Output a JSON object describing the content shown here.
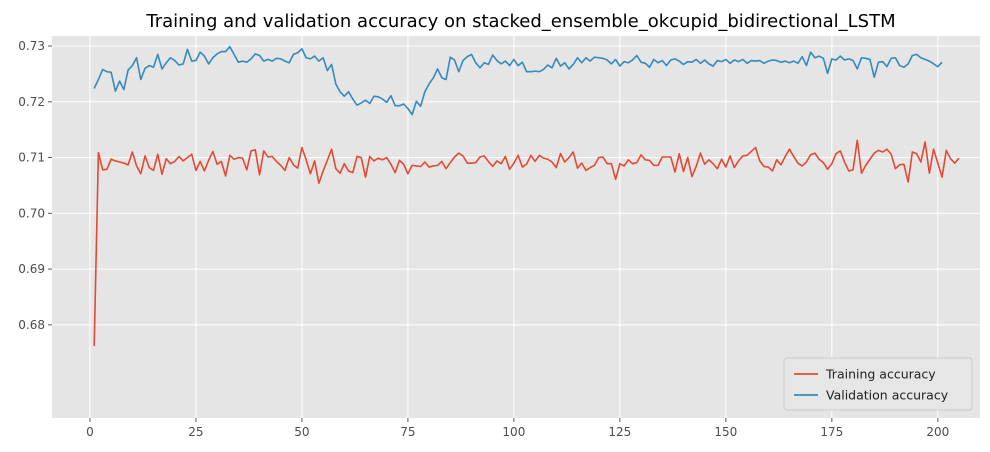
{
  "chart_data": {
    "type": "line",
    "title": "Training and validation accuracy on stacked_ensemble_okcupid_bidirectional_LSTM",
    "xlabel": "",
    "ylabel": "",
    "xlim": [
      -8.95,
      209.95
    ],
    "ylim": [
      0.6633,
      0.7318
    ],
    "xticks": [
      0,
      25,
      50,
      75,
      100,
      125,
      150,
      175,
      200
    ],
    "yticks": [
      0.68,
      0.69,
      0.7,
      0.71,
      0.72,
      0.73
    ],
    "grid": true,
    "legend_position": "lower-right",
    "series": [
      {
        "name": "Training accuracy",
        "color": "#e24a33",
        "values": [
          0.6762,
          0.7109,
          0.7078,
          0.7079,
          0.7097,
          0.7094,
          0.7092,
          0.709,
          0.7087,
          0.711,
          0.7085,
          0.7071,
          0.7103,
          0.7082,
          0.7077,
          0.7106,
          0.707,
          0.7098,
          0.7089,
          0.7093,
          0.7102,
          0.7094,
          0.71,
          0.7106,
          0.7077,
          0.7093,
          0.7076,
          0.7095,
          0.7111,
          0.7088,
          0.7093,
          0.7067,
          0.7104,
          0.7097,
          0.71,
          0.7099,
          0.7078,
          0.7112,
          0.7114,
          0.7069,
          0.7112,
          0.7101,
          0.7102,
          0.7093,
          0.7086,
          0.7077,
          0.71,
          0.7087,
          0.7081,
          0.7118,
          0.7096,
          0.7071,
          0.7094,
          0.7054,
          0.7076,
          0.7095,
          0.7115,
          0.708,
          0.7072,
          0.7089,
          0.7076,
          0.7073,
          0.7102,
          0.71,
          0.7065,
          0.7102,
          0.7094,
          0.7099,
          0.7096,
          0.71,
          0.7088,
          0.7073,
          0.7095,
          0.7088,
          0.7071,
          0.7086,
          0.7085,
          0.7084,
          0.7092,
          0.7083,
          0.7085,
          0.7086,
          0.7093,
          0.708,
          0.7091,
          0.7101,
          0.7108,
          0.7103,
          0.709,
          0.709,
          0.7091,
          0.7101,
          0.7103,
          0.7093,
          0.7084,
          0.7094,
          0.7089,
          0.7102,
          0.7079,
          0.709,
          0.7104,
          0.7083,
          0.7088,
          0.7104,
          0.7093,
          0.7104,
          0.7099,
          0.7097,
          0.7092,
          0.7082,
          0.7107,
          0.7092,
          0.71,
          0.711,
          0.7081,
          0.709,
          0.7077,
          0.7082,
          0.7086,
          0.71,
          0.7101,
          0.7089,
          0.7089,
          0.7061,
          0.7089,
          0.7085,
          0.7096,
          0.7089,
          0.7091,
          0.7105,
          0.7096,
          0.7095,
          0.7086,
          0.7086,
          0.7101,
          0.7101,
          0.7101,
          0.7074,
          0.7107,
          0.7075,
          0.71,
          0.7066,
          0.7084,
          0.7108,
          0.7088,
          0.7096,
          0.7089,
          0.708,
          0.7097,
          0.7083,
          0.7103,
          0.7082,
          0.7094,
          0.7103,
          0.7104,
          0.7111,
          0.7118,
          0.7094,
          0.7084,
          0.7083,
          0.7076,
          0.7096,
          0.7087,
          0.7102,
          0.7115,
          0.7102,
          0.709,
          0.7085,
          0.7092,
          0.7105,
          0.7108,
          0.7097,
          0.7091,
          0.7079,
          0.7089,
          0.7107,
          0.7112,
          0.7092,
          0.7076,
          0.7078,
          0.7131,
          0.7072,
          0.7086,
          0.7097,
          0.7108,
          0.7113,
          0.711,
          0.7115,
          0.7106,
          0.708,
          0.7087,
          0.7088,
          0.7056,
          0.711,
          0.7107,
          0.7092,
          0.7128,
          0.7072,
          0.7115,
          0.709,
          0.7065,
          0.7113,
          0.7098,
          0.709,
          0.7099
        ]
      },
      {
        "name": "Validation accuracy",
        "color": "#348abd",
        "values": [
          0.7224,
          0.724,
          0.7258,
          0.7254,
          0.7253,
          0.7219,
          0.7237,
          0.7222,
          0.7257,
          0.7265,
          0.7279,
          0.724,
          0.726,
          0.7265,
          0.7262,
          0.7285,
          0.7259,
          0.727,
          0.7279,
          0.7274,
          0.7266,
          0.7268,
          0.7294,
          0.7273,
          0.7274,
          0.7289,
          0.7282,
          0.7268,
          0.7279,
          0.7286,
          0.729,
          0.729,
          0.7299,
          0.7285,
          0.7271,
          0.7273,
          0.7271,
          0.7277,
          0.7286,
          0.7283,
          0.7273,
          0.7276,
          0.7273,
          0.7278,
          0.7277,
          0.7273,
          0.727,
          0.7285,
          0.7288,
          0.7295,
          0.7279,
          0.7277,
          0.7282,
          0.7273,
          0.7279,
          0.7256,
          0.7267,
          0.7232,
          0.7218,
          0.721,
          0.7218,
          0.7205,
          0.7194,
          0.7198,
          0.7203,
          0.7197,
          0.721,
          0.7209,
          0.7205,
          0.7199,
          0.7211,
          0.7193,
          0.7193,
          0.7196,
          0.7188,
          0.7177,
          0.7201,
          0.7192,
          0.7218,
          0.7232,
          0.7243,
          0.7259,
          0.7243,
          0.724,
          0.728,
          0.7275,
          0.7254,
          0.7274,
          0.7281,
          0.7285,
          0.727,
          0.7261,
          0.727,
          0.7267,
          0.7284,
          0.7274,
          0.7268,
          0.7273,
          0.7265,
          0.7276,
          0.7265,
          0.7271,
          0.7254,
          0.7254,
          0.7255,
          0.7254,
          0.7258,
          0.7266,
          0.7261,
          0.7278,
          0.7264,
          0.727,
          0.7259,
          0.7267,
          0.7279,
          0.727,
          0.7279,
          0.7273,
          0.728,
          0.7279,
          0.7278,
          0.7275,
          0.7268,
          0.7276,
          0.7264,
          0.7272,
          0.727,
          0.7275,
          0.7283,
          0.7271,
          0.7269,
          0.7262,
          0.7276,
          0.727,
          0.7274,
          0.7265,
          0.7275,
          0.7277,
          0.7273,
          0.7267,
          0.7272,
          0.7271,
          0.7276,
          0.7269,
          0.7275,
          0.7268,
          0.7264,
          0.7274,
          0.7272,
          0.7276,
          0.7269,
          0.7275,
          0.7272,
          0.7276,
          0.7269,
          0.7274,
          0.7273,
          0.7274,
          0.7269,
          0.7273,
          0.7275,
          0.7274,
          0.7271,
          0.7273,
          0.727,
          0.7273,
          0.7269,
          0.7281,
          0.7265,
          0.7289,
          0.7279,
          0.7282,
          0.7278,
          0.7251,
          0.7277,
          0.7275,
          0.7282,
          0.7275,
          0.7277,
          0.7274,
          0.7259,
          0.7279,
          0.7278,
          0.7276,
          0.7244,
          0.7271,
          0.7272,
          0.7263,
          0.7278,
          0.7279,
          0.7265,
          0.7262,
          0.7268,
          0.7283,
          0.7285,
          0.7279,
          0.7276,
          0.7273,
          0.7268,
          0.7263,
          0.7271
        ]
      }
    ]
  }
}
